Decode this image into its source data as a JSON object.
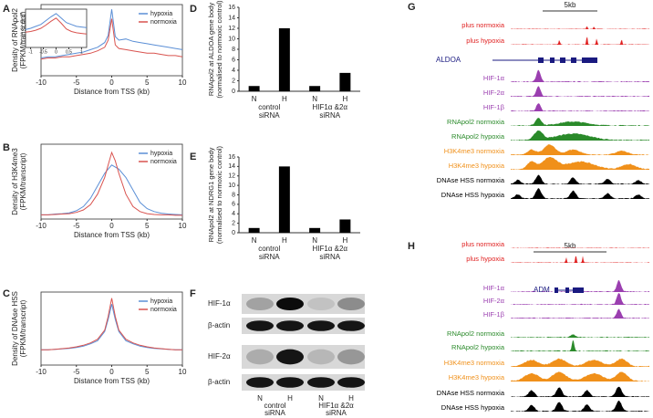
{
  "panel_labels": [
    "A",
    "B",
    "C",
    "D",
    "E",
    "F",
    "G",
    "H"
  ],
  "chart_data": [
    {
      "type": "line",
      "ylabel": [
        "Density of RNApol2",
        "(FPKM/transcript)"
      ],
      "xlabel": "Distance from TSS (kb)",
      "xlim": [
        -10,
        10
      ],
      "xticks": [
        -10,
        -5,
        0,
        5,
        10
      ],
      "ylim": [
        0,
        6
      ],
      "legend": "upper right",
      "x": [
        -10,
        -9,
        -8,
        -7,
        -6,
        -5,
        -4,
        -3,
        -2,
        -1,
        -0.5,
        0,
        0.5,
        1,
        2,
        3,
        4,
        5,
        6,
        7,
        8,
        9,
        10
      ],
      "series": [
        {
          "name": "hypoxia",
          "color": "#5b8fd6",
          "values": [
            1.5,
            1.6,
            1.6,
            1.7,
            1.8,
            1.9,
            2.0,
            2.2,
            2.4,
            2.8,
            3.4,
            5.6,
            3.3,
            3.0,
            3.1,
            2.9,
            2.8,
            2.7,
            2.6,
            2.5,
            2.4,
            2.3,
            2.2
          ]
        },
        {
          "name": "normoxia",
          "color": "#d9534f",
          "values": [
            1.4,
            1.5,
            1.5,
            1.6,
            1.6,
            1.7,
            1.8,
            1.9,
            2.1,
            2.4,
            3.0,
            4.8,
            2.6,
            2.3,
            2.2,
            2.1,
            2.0,
            1.9,
            1.9,
            1.8,
            1.7,
            1.7,
            1.6
          ]
        }
      ]
    },
    {
      "type": "line",
      "xlim": [
        -1.2,
        1.2
      ],
      "xticks": [
        -1,
        -0.5,
        0,
        0.5,
        1
      ],
      "ylim": [
        0,
        6
      ],
      "yticks": [
        1,
        2,
        3,
        4,
        5
      ],
      "x": [
        -1.2,
        -1,
        -0.8,
        -0.6,
        -0.4,
        -0.2,
        0,
        0.2,
        0.4,
        0.6,
        0.8,
        1,
        1.2
      ],
      "series": [
        {
          "color": "#5b8fd6",
          "values": [
            2.8,
            3.0,
            3.3,
            3.6,
            4.2,
            4.8,
            5.3,
            4.6,
            3.9,
            3.6,
            3.3,
            3.2,
            3.1
          ]
        },
        {
          "color": "#d9534f",
          "values": [
            2.4,
            2.5,
            2.7,
            3.0,
            3.5,
            4.1,
            4.6,
            3.8,
            2.9,
            2.5,
            2.3,
            2.2,
            2.1
          ]
        }
      ]
    },
    {
      "type": "line",
      "ylabel": [
        "Density of H3K4me3",
        "(FPKM/transcript)"
      ],
      "xlabel": "Distance from TSS (kb)",
      "xlim": [
        -10,
        10
      ],
      "xticks": [
        -10,
        -5,
        0,
        5,
        10
      ],
      "ylim": [
        0,
        18
      ],
      "legend": "upper right",
      "x": [
        -10,
        -9,
        -8,
        -7,
        -6,
        -5,
        -4,
        -3,
        -2,
        -1,
        -0.5,
        0,
        0.5,
        1,
        2,
        3,
        4,
        5,
        6,
        7,
        8,
        9,
        10
      ],
      "series": [
        {
          "name": "hypoxia",
          "color": "#5b8fd6",
          "values": [
            1,
            1,
            1.2,
            1.3,
            1.5,
            2,
            3,
            5,
            8,
            11,
            12,
            13,
            12.5,
            12,
            10,
            7,
            4,
            2.5,
            1.8,
            1.4,
            1.2,
            1.1,
            1.0
          ]
        },
        {
          "name": "normoxia",
          "color": "#d9534f",
          "values": [
            1,
            1,
            1.1,
            1.2,
            1.3,
            1.6,
            2.2,
            3.5,
            6,
            10,
            13,
            16,
            14,
            11,
            6,
            3,
            1.8,
            1.3,
            1.1,
            1.0,
            1.0,
            0.9,
            0.9
          ]
        }
      ]
    },
    {
      "type": "line",
      "ylabel": [
        "Density of DNAse HSS",
        "(FPKM/transcript)"
      ],
      "xlabel": "Distance from TSS (kb)",
      "xlim": [
        -10,
        10
      ],
      "xticks": [
        -10,
        -5,
        0,
        5,
        10
      ],
      "ylim": [
        0,
        24
      ],
      "legend": "upper right",
      "x": [
        -10,
        -9,
        -8,
        -7,
        -6,
        -5,
        -4,
        -3,
        -2,
        -1,
        -0.5,
        0,
        0.5,
        1,
        2,
        3,
        4,
        5,
        6,
        7,
        8,
        9,
        10
      ],
      "series": [
        {
          "name": "hypoxia",
          "color": "#5b8fd6",
          "values": [
            5,
            5,
            5.2,
            5.3,
            5.5,
            5.8,
            6.2,
            7,
            8,
            11,
            15,
            20,
            15,
            11,
            8,
            7,
            6.2,
            5.8,
            5.5,
            5.3,
            5.2,
            5,
            5
          ]
        },
        {
          "name": "normoxia",
          "color": "#d9534f",
          "values": [
            5,
            5,
            5.2,
            5.4,
            5.6,
            6,
            6.5,
            7.3,
            8.5,
            11.5,
            16,
            22,
            16,
            11.5,
            8.5,
            7.3,
            6.5,
            6,
            5.6,
            5.4,
            5.2,
            5,
            5
          ]
        }
      ]
    },
    {
      "type": "bar",
      "ylabel": [
        "RNApol2 at ALDOA gene body",
        "(normalised to normoxic control)"
      ],
      "categories": [
        "N",
        "H",
        "N",
        "H"
      ],
      "values": [
        1,
        12,
        1,
        3.5
      ],
      "color": "#000000",
      "groups": [
        [
          "control",
          "siRNA"
        ],
        [
          "HIF1α &2α",
          "siRNA"
        ]
      ],
      "ylim": [
        0,
        16
      ],
      "yticks": [
        0,
        2,
        4,
        6,
        8,
        10,
        12,
        14,
        16
      ]
    },
    {
      "type": "bar",
      "ylabel": [
        "RNApol2 at NDRG1 gene body",
        "(normalised to normoxic control)"
      ],
      "categories": [
        "N",
        "H",
        "N",
        "H"
      ],
      "values": [
        1,
        14,
        1,
        2.8
      ],
      "color": "#000000",
      "groups": [
        [
          "control",
          "siRNA"
        ],
        [
          "HIF1α &2α",
          "siRNA"
        ]
      ],
      "ylim": [
        0,
        16
      ],
      "yticks": [
        0,
        2,
        4,
        6,
        8,
        10,
        12,
        14,
        16
      ]
    }
  ],
  "blot": {
    "rows": [
      "HIF-1α",
      "β-actin",
      "HIF-2α",
      "β-actin"
    ],
    "lanes": [
      "N",
      "H",
      "N",
      "H"
    ],
    "groups": [
      [
        "control",
        "siRNA"
      ],
      [
        "HIF1α &2α",
        "siRNA"
      ]
    ]
  },
  "tracks_g": {
    "scale": "5kb",
    "gene": "ALDOA",
    "tracks": [
      {
        "label": "plus normoxia",
        "color": "#e02020"
      },
      {
        "label": "plus hypoxia",
        "color": "#e02020"
      },
      {
        "label": "HIF-1α",
        "color": "#9b3fb0"
      },
      {
        "label": "HIF-2α",
        "color": "#9b3fb0"
      },
      {
        "label": "HIF-1β",
        "color": "#9b3fb0"
      },
      {
        "label": "RNApol2 normoxia",
        "color": "#2a8a2a"
      },
      {
        "label": "RNApol2 hypoxia",
        "color": "#2a8a2a"
      },
      {
        "label": "H3K4me3 normoxia",
        "color": "#f0901a"
      },
      {
        "label": "H3K4me3 hypoxia",
        "color": "#f0901a"
      },
      {
        "label": "DNAse HSS normoxia",
        "color": "#000000"
      },
      {
        "label": "DNAse HSS hypoxia",
        "color": "#000000"
      }
    ]
  },
  "tracks_h": {
    "scale": "5kb",
    "gene": "ADM",
    "tracks": [
      {
        "label": "plus normoxia",
        "color": "#e02020"
      },
      {
        "label": "plus hypoxia",
        "color": "#e02020"
      },
      {
        "label": "HIF-1α",
        "color": "#9b3fb0"
      },
      {
        "label": "HIF-2α",
        "color": "#9b3fb0"
      },
      {
        "label": "HIF-1β",
        "color": "#9b3fb0"
      },
      {
        "label": "RNApol2 normoxia",
        "color": "#2a8a2a"
      },
      {
        "label": "RNApol2 hypoxia",
        "color": "#2a8a2a"
      },
      {
        "label": "H3K4me3 normoxia",
        "color": "#f0901a"
      },
      {
        "label": "H3K4me3 hypoxia",
        "color": "#f0901a"
      },
      {
        "label": "DNAse HSS normoxia",
        "color": "#000000"
      },
      {
        "label": "DNAse HSS hypoxia",
        "color": "#000000"
      }
    ]
  }
}
